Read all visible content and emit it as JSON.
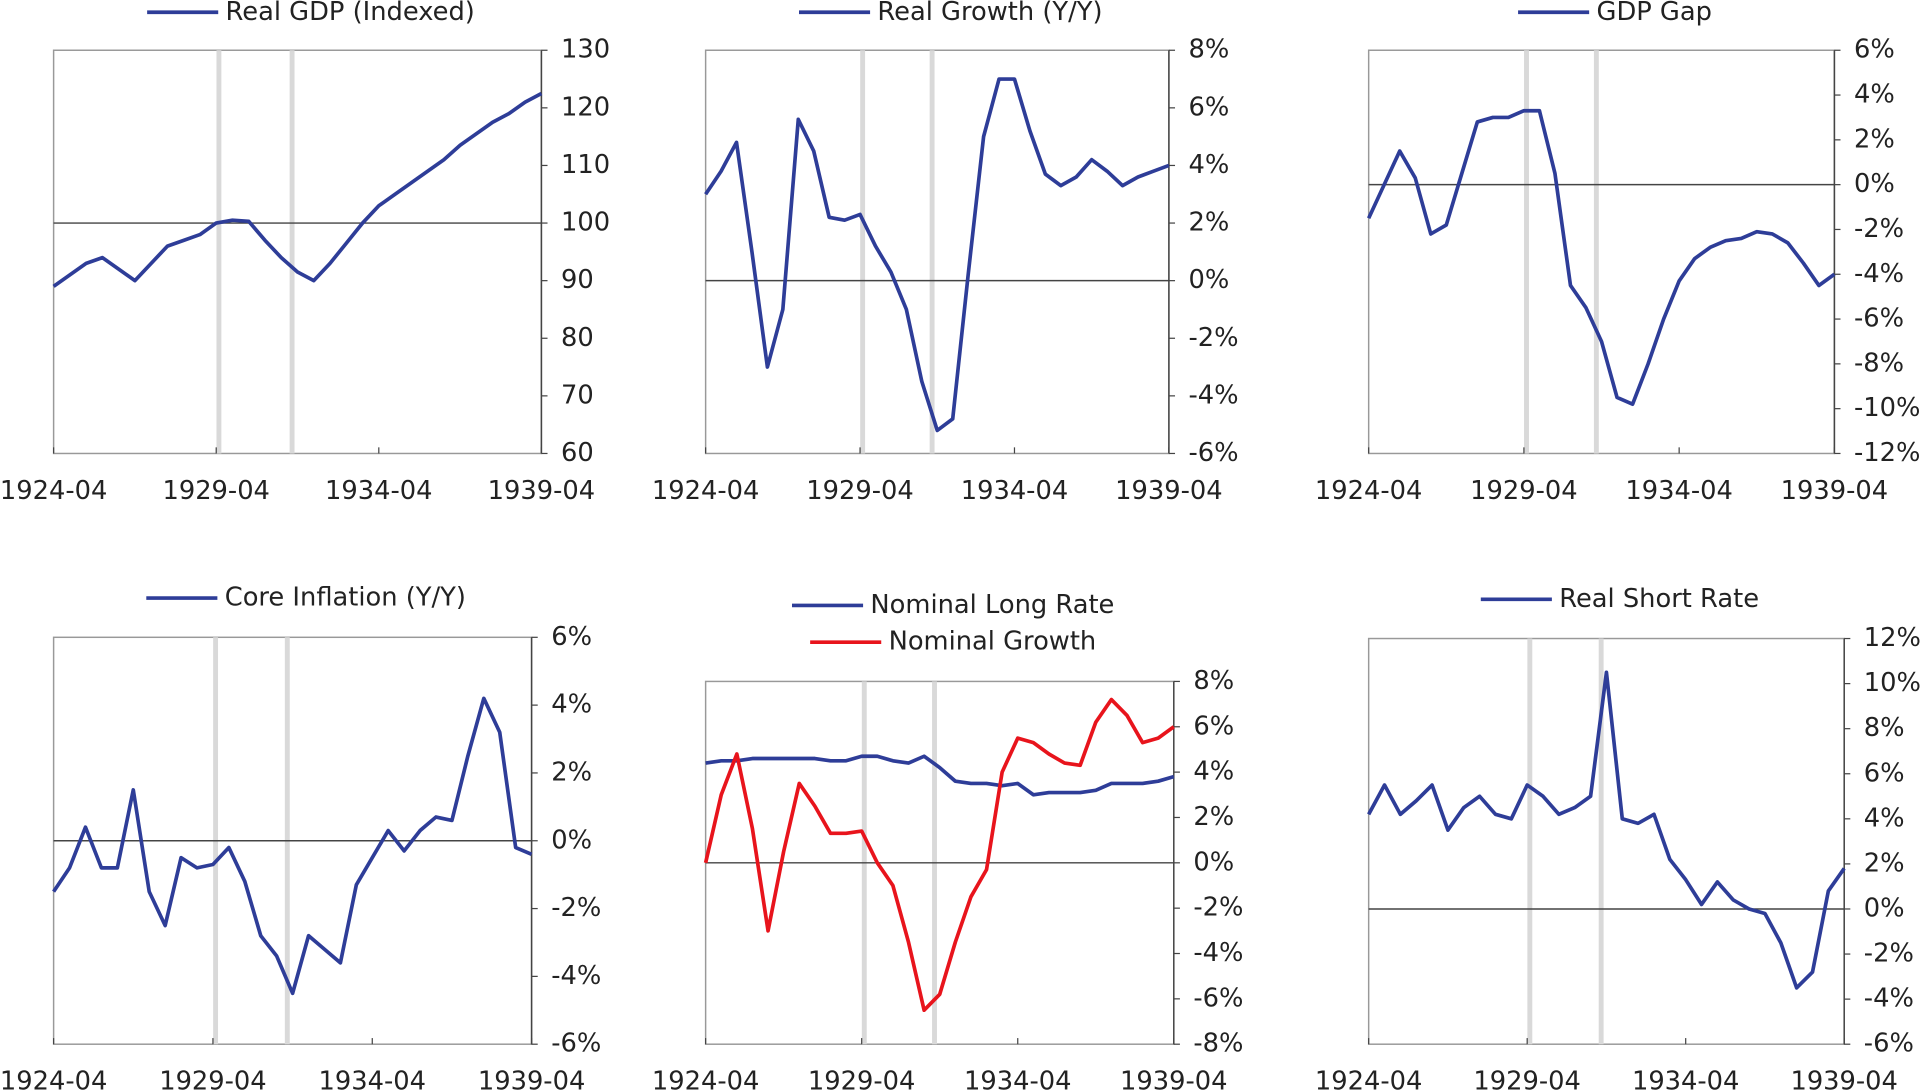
{
  "chart_data": [
    {
      "type": "line",
      "markers": [
        "1929-05",
        "1931-08"
      ],
      "baseline": 100,
      "x": [
        "1924-04",
        "1924-10",
        "1925-04",
        "1925-10",
        "1926-04",
        "1926-10",
        "1927-04",
        "1927-10",
        "1928-04",
        "1928-10",
        "1929-04",
        "1929-10",
        "1930-04",
        "1930-10",
        "1931-04",
        "1931-10",
        "1932-04",
        "1932-10",
        "1933-04",
        "1933-10",
        "1934-04",
        "1934-10",
        "1935-04",
        "1935-10",
        "1936-04",
        "1936-10",
        "1937-04",
        "1937-10",
        "1938-04",
        "1938-10",
        "1939-04"
      ],
      "xlim": [
        "1924-04",
        "1939-04"
      ],
      "xticks": [
        "1924-04",
        "1929-04",
        "1934-04",
        "1939-04"
      ],
      "ylim": [
        60,
        130
      ],
      "yticks": [
        60,
        70,
        80,
        90,
        100,
        110,
        120,
        130
      ],
      "series": [
        {
          "name": "Real GDP (Indexed)",
          "color": "#2e3d98",
          "values": [
            89,
            91,
            93,
            94,
            92,
            90,
            93,
            96,
            97,
            98,
            100,
            100.5,
            100.3,
            97,
            94,
            91.5,
            90,
            93,
            96.5,
            100,
            103,
            105,
            107,
            109,
            111,
            113.5,
            115.5,
            117.5,
            119,
            121,
            122.5
          ]
        }
      ]
    },
    {
      "type": "line",
      "markers": [
        "1929-05",
        "1931-08"
      ],
      "baseline": 0,
      "x": [
        "1924-04",
        "1924-10",
        "1925-04",
        "1925-10",
        "1926-04",
        "1926-10",
        "1927-04",
        "1927-10",
        "1928-04",
        "1928-10",
        "1929-04",
        "1929-10",
        "1930-04",
        "1930-10",
        "1931-04",
        "1931-10",
        "1932-04",
        "1932-10",
        "1933-04",
        "1933-10",
        "1934-04",
        "1934-10",
        "1935-04",
        "1935-10",
        "1936-04",
        "1936-10",
        "1937-04",
        "1937-10",
        "1938-04",
        "1938-10",
        "1939-04"
      ],
      "xlim": [
        "1924-04",
        "1939-04"
      ],
      "xticks": [
        "1924-04",
        "1929-04",
        "1934-04",
        "1939-04"
      ],
      "ylim": [
        -6,
        8
      ],
      "yticks": [
        {
          "value": -6,
          "label": "-6%"
        },
        {
          "value": -4,
          "label": "-4%"
        },
        {
          "value": -2,
          "label": "-2%"
        },
        {
          "value": 0,
          "label": "0%"
        },
        {
          "value": 2,
          "label": "2%"
        },
        {
          "value": 4,
          "label": "4%"
        },
        {
          "value": 6,
          "label": "6%"
        },
        {
          "value": 8,
          "label": "8%"
        }
      ],
      "series": [
        {
          "name": "Real Growth (Y/Y)",
          "color": "#2e3d98",
          "values": [
            3,
            3.8,
            4.8,
            1,
            -3,
            -1,
            5.6,
            4.5,
            2.2,
            2.1,
            2.3,
            1.2,
            0.3,
            -1,
            -3.5,
            -5.2,
            -4.8,
            0.2,
            5,
            7,
            7,
            5.2,
            3.7,
            3.3,
            3.6,
            4.2,
            3.8,
            3.3,
            3.6,
            3.8,
            4
          ]
        }
      ]
    },
    {
      "type": "line",
      "markers": [
        "1929-05",
        "1931-08"
      ],
      "baseline": 0,
      "x": [
        "1924-04",
        "1924-10",
        "1925-04",
        "1925-10",
        "1926-04",
        "1926-10",
        "1927-04",
        "1927-10",
        "1928-04",
        "1928-10",
        "1929-04",
        "1929-10",
        "1930-04",
        "1930-10",
        "1931-04",
        "1931-10",
        "1932-04",
        "1932-10",
        "1933-04",
        "1933-10",
        "1934-04",
        "1934-10",
        "1935-04",
        "1935-10",
        "1936-04",
        "1936-10",
        "1937-04",
        "1937-10",
        "1938-04",
        "1938-10",
        "1939-04"
      ],
      "xlim": [
        "1924-04",
        "1939-04"
      ],
      "xticks": [
        "1924-04",
        "1929-04",
        "1934-04",
        "1939-04"
      ],
      "ylim": [
        -12,
        6
      ],
      "yticks": [
        {
          "value": -12,
          "label": "-12%"
        },
        {
          "value": -10,
          "label": "-10%"
        },
        {
          "value": -8,
          "label": "-8%"
        },
        {
          "value": -6,
          "label": "-6%"
        },
        {
          "value": -4,
          "label": "-4%"
        },
        {
          "value": -2,
          "label": "-2%"
        },
        {
          "value": 0,
          "label": "0%"
        },
        {
          "value": 2,
          "label": "2%"
        },
        {
          "value": 4,
          "label": "4%"
        },
        {
          "value": 6,
          "label": "6%"
        }
      ],
      "series": [
        {
          "name": "GDP Gap",
          "color": "#2e3d98",
          "values": [
            -1.5,
            0,
            1.5,
            0.3,
            -2.2,
            -1.8,
            0.5,
            2.8,
            3,
            3,
            3.3,
            3.3,
            0.5,
            -4.5,
            -5.5,
            -7,
            -9.5,
            -9.8,
            -8,
            -6,
            -4.3,
            -3.3,
            -2.8,
            -2.5,
            -2.4,
            -2.1,
            -2.2,
            -2.6,
            -3.5,
            -4.5,
            -4
          ]
        }
      ]
    },
    {
      "type": "line",
      "markers": [
        "1929-05",
        "1931-08"
      ],
      "baseline": 0,
      "x": [
        "1924-04",
        "1924-10",
        "1925-04",
        "1925-10",
        "1926-04",
        "1926-10",
        "1927-04",
        "1927-10",
        "1928-04",
        "1928-10",
        "1929-04",
        "1929-10",
        "1930-04",
        "1930-10",
        "1931-04",
        "1931-10",
        "1932-04",
        "1932-10",
        "1933-04",
        "1933-10",
        "1934-04",
        "1934-10",
        "1935-04",
        "1935-10",
        "1936-04",
        "1936-10",
        "1937-04",
        "1937-10",
        "1938-04",
        "1938-10",
        "1939-04"
      ],
      "xlim": [
        "1924-04",
        "1939-04"
      ],
      "xticks": [
        "1924-04",
        "1929-04",
        "1934-04",
        "1939-04"
      ],
      "ylim": [
        -6,
        6
      ],
      "yticks": [
        {
          "value": -6,
          "label": "-6%"
        },
        {
          "value": -4,
          "label": "-4%"
        },
        {
          "value": -2,
          "label": "-2%"
        },
        {
          "value": 0,
          "label": "0%"
        },
        {
          "value": 2,
          "label": "2%"
        },
        {
          "value": 4,
          "label": "4%"
        },
        {
          "value": 6,
          "label": "6%"
        }
      ],
      "series": [
        {
          "name": "Core Inflation (Y/Y)",
          "color": "#2e3d98",
          "values": [
            -1.5,
            -0.8,
            0.4,
            -0.8,
            -0.8,
            1.5,
            -1.5,
            -2.5,
            -0.5,
            -0.8,
            -0.7,
            -0.2,
            -1.2,
            -2.8,
            -3.4,
            -4.5,
            -2.8,
            -3.2,
            -3.6,
            -1.3,
            -0.5,
            0.3,
            -0.3,
            0.3,
            0.7,
            0.6,
            2.5,
            4.2,
            3.2,
            -0.2,
            -0.4
          ]
        }
      ]
    },
    {
      "type": "line",
      "markers": [
        "1929-05",
        "1931-08"
      ],
      "baseline": 0,
      "x": [
        "1924-04",
        "1924-10",
        "1925-04",
        "1925-10",
        "1926-04",
        "1926-10",
        "1927-04",
        "1927-10",
        "1928-04",
        "1928-10",
        "1929-04",
        "1929-10",
        "1930-04",
        "1930-10",
        "1931-04",
        "1931-10",
        "1932-04",
        "1932-10",
        "1933-04",
        "1933-10",
        "1934-04",
        "1934-10",
        "1935-04",
        "1935-10",
        "1936-04",
        "1936-10",
        "1937-04",
        "1937-10",
        "1938-04",
        "1938-10",
        "1939-04"
      ],
      "xlim": [
        "1924-04",
        "1939-04"
      ],
      "xticks": [
        "1924-04",
        "1929-04",
        "1934-04",
        "1939-04"
      ],
      "ylim": [
        -8,
        8
      ],
      "yticks": [
        {
          "value": -8,
          "label": "-8%"
        },
        {
          "value": -6,
          "label": "-6%"
        },
        {
          "value": -4,
          "label": "-4%"
        },
        {
          "value": -2,
          "label": "-2%"
        },
        {
          "value": 0,
          "label": "0%"
        },
        {
          "value": 2,
          "label": "2%"
        },
        {
          "value": 4,
          "label": "4%"
        },
        {
          "value": 6,
          "label": "6%"
        },
        {
          "value": 8,
          "label": "8%"
        }
      ],
      "series": [
        {
          "name": "Nominal Long Rate",
          "color": "#2e3d98",
          "values": [
            4.4,
            4.5,
            4.5,
            4.6,
            4.6,
            4.6,
            4.6,
            4.6,
            4.5,
            4.5,
            4.7,
            4.7,
            4.5,
            4.4,
            4.7,
            4.2,
            3.6,
            3.5,
            3.5,
            3.4,
            3.5,
            3,
            3.1,
            3.1,
            3.1,
            3.2,
            3.5,
            3.5,
            3.5,
            3.6,
            3.8
          ]
        },
        {
          "name": "Nominal Growth",
          "color": "#e8141c",
          "values": [
            0,
            3,
            4.8,
            1.5,
            -3,
            0.5,
            3.5,
            2.5,
            1.3,
            1.3,
            1.4,
            0,
            -1,
            -3.5,
            -6.5,
            -5.8,
            -3.5,
            -1.5,
            -0.3,
            4,
            5.5,
            5.3,
            4.8,
            4.4,
            4.3,
            6.2,
            7.2,
            6.5,
            5.3,
            5.5,
            6
          ]
        }
      ]
    },
    {
      "type": "line",
      "markers": [
        "1929-05",
        "1931-08"
      ],
      "baseline": 0,
      "x": [
        "1924-04",
        "1924-10",
        "1925-04",
        "1925-10",
        "1926-04",
        "1926-10",
        "1927-04",
        "1927-10",
        "1928-04",
        "1928-10",
        "1929-04",
        "1929-10",
        "1930-04",
        "1930-10",
        "1931-04",
        "1931-10",
        "1932-04",
        "1932-10",
        "1933-04",
        "1933-10",
        "1934-04",
        "1934-10",
        "1935-04",
        "1935-10",
        "1936-04",
        "1936-10",
        "1937-04",
        "1937-10",
        "1938-04",
        "1938-10",
        "1939-04"
      ],
      "xlim": [
        "1924-04",
        "1939-04"
      ],
      "xticks": [
        "1924-04",
        "1929-04",
        "1934-04",
        "1939-04"
      ],
      "ylim": [
        -6,
        12
      ],
      "yticks": [
        {
          "value": -6,
          "label": "-6%"
        },
        {
          "value": -4,
          "label": "-4%"
        },
        {
          "value": -2,
          "label": "-2%"
        },
        {
          "value": 0,
          "label": "0%"
        },
        {
          "value": 2,
          "label": "2%"
        },
        {
          "value": 4,
          "label": "4%"
        },
        {
          "value": 6,
          "label": "6%"
        },
        {
          "value": 8,
          "label": "8%"
        },
        {
          "value": 10,
          "label": "10%"
        },
        {
          "value": 12,
          "label": "12%"
        }
      ],
      "series": [
        {
          "name": "Real Short Rate",
          "color": "#2e3d98",
          "values": [
            4.2,
            5.5,
            4.2,
            4.8,
            5.5,
            3.5,
            4.5,
            5,
            4.2,
            4,
            5.5,
            5,
            4.2,
            4.5,
            5,
            10.5,
            4,
            3.8,
            4.2,
            2.2,
            1.3,
            0.2,
            1.2,
            0.4,
            0,
            -0.2,
            -1.5,
            -3.5,
            -2.8,
            0.8,
            1.8
          ]
        }
      ]
    }
  ]
}
